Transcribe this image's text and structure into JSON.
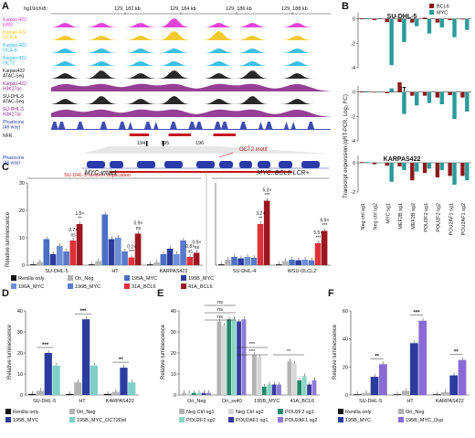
{
  "panel_letters": [
    "A",
    "B",
    "C",
    "D",
    "E",
    "F"
  ],
  "colors": {
    "magenta": "#e12fd6",
    "gold": "#f2c318",
    "cyan": "#23b7e5",
    "black": "#111111",
    "purple": "#8b2a8c",
    "navy": "#2a3aa8",
    "red": "#c4161c",
    "teal": "#2a9a9a",
    "grey": "#b3b3b3",
    "lightgrey": "#d9d9d9",
    "darkred": "#8c1a1a",
    "blue": "#3f5fbf"
  },
  "panelA": {
    "genome": "hg19/chr8:",
    "coords": [
      "129, 182 kb",
      "129, 184 kb",
      "129, 186 kb",
      "129, 188 kb"
    ],
    "tracks": [
      {
        "label": "Karpas-422\np300",
        "color": "#e12fd6"
      },
      {
        "label": "Karpas-422\nOCA-B",
        "color": "#f2c318"
      },
      {
        "label": "Karpas-422\nOCA-B",
        "color": "#23b7e5"
      },
      {
        "label": "Karpas-422\nOCT2",
        "color": "#23b7e5"
      },
      {
        "label": "Karpas422\nATAC-Seq",
        "color": "#111111"
      },
      {
        "label": "Karpas-422\nH3K27ac",
        "color": "#8b2a8c"
      },
      {
        "label": "SU-DHL-5\nATAC-Seq",
        "color": "#111111"
      },
      {
        "label": "SU-DHL-5\nH3K27ac",
        "color": "#8b2a8c"
      },
      {
        "label": "Phastcons\n(46 way)",
        "color": "#2a3aa8"
      }
    ],
    "nfr": "NFR",
    "labels194": "194",
    "labels195": "195",
    "labels196": "196",
    "a": "A",
    "b": "B",
    "oct2": "OCT2 motif",
    "phastcons_zoom": "Phastcons\n(46 way)",
    "dup": "SU-DHL-5 tandem duplication"
  },
  "panelB": {
    "ylabel": "Transcript expression (qRT-PCR, Log₂ FC)",
    "legend": [
      {
        "name": "BCL6",
        "color": "#8c1a1a"
      },
      {
        "name": "MYC",
        "color": "#2a9a9a"
      }
    ],
    "categories": [
      "Neg_ctrl_sg1",
      "Neg_ctrl_sg2",
      "MYC_sg1",
      "MEF2B_sg1",
      "MEF2B_sg2",
      "POU2F2_sg1",
      "POU2F2_sg2",
      "POU2AF1_sg1",
      "POU2AF1_sg2"
    ],
    "cells": [
      {
        "name": "SU-DHL-5",
        "ylim": [
          -4,
          0.5
        ],
        "ticks": [
          "0",
          "-2",
          "-4"
        ],
        "bcl6": [
          0.05,
          -0.1,
          -0.25,
          -0.25,
          -0.3,
          0.1,
          -0.3,
          -0.1,
          -0.05
        ],
        "myc": [
          0.05,
          0.05,
          -3.8,
          -1.9,
          -0.6,
          -1.2,
          -0.7,
          -1.5,
          -0.9
        ]
      },
      {
        "name": "HT",
        "ylim": [
          -4,
          0.5
        ],
        "ticks": [
          "0",
          "-2",
          "-4"
        ],
        "bcl6": [
          0.05,
          0.0,
          -0.1,
          0.8,
          -0.3,
          -0.3,
          -0.45,
          -0.25,
          -0.45
        ],
        "myc": [
          0.05,
          0.0,
          0.3,
          -1.8,
          -1.1,
          -0.9,
          -1.0,
          -2.2,
          -1.6
        ]
      },
      {
        "name": "KARPAS422",
        "ylim": [
          -2,
          0.5
        ],
        "ticks": [
          "0",
          "-2"
        ],
        "bcl6": [
          0.05,
          -0.1,
          -0.2,
          -0.25,
          -1.2,
          -0.7,
          -1.0,
          -0.9,
          -0.9
        ],
        "myc": [
          0.05,
          0.0,
          -1.3,
          -0.5,
          -0.6,
          -0.4,
          -0.5,
          -1.5,
          -1.2
        ]
      }
    ]
  },
  "panelC": {
    "ylabel": "Relative luminescence",
    "header_left": "MYC-intact",
    "header_right": "MYC::BCL6-LCR+",
    "ylim": [
      0,
      30
    ],
    "ticks": [
      "0",
      "10",
      "20",
      "30"
    ],
    "cells": [
      "SU-DHL-5",
      "HT",
      "KARPAS422",
      "SU-DHL-4",
      "WSU-DLCL2"
    ],
    "series": [
      {
        "name": "Renilla only",
        "color": "#111111"
      },
      {
        "name": "Ori_Neg",
        "color": "#b3b3b3"
      },
      {
        "name": "195A_MYC",
        "color": "#4a6fc4"
      },
      {
        "name": "195B_MYC",
        "color": "#2b3c9e"
      },
      {
        "name": "196A_MYC",
        "color": "#6d8fd6"
      },
      {
        "name": "196B_MYC",
        "color": "#5a7ac8"
      },
      {
        "name": "31A_BCL6",
        "color": "#e0303a"
      },
      {
        "name": "41A_BCL6",
        "color": "#9c1620"
      }
    ],
    "values": {
      "SU-DHL-5": [
        0.3,
        1.2,
        9.5,
        4,
        7,
        5,
        9,
        15
      ],
      "HT": [
        0.3,
        1.5,
        18.5,
        9.5,
        10,
        5,
        2.8,
        11.5
      ],
      "KARPAS422": [
        0.3,
        1,
        4,
        6,
        4,
        9,
        3,
        4.5
      ],
      "SU-DHL-4": [
        0.3,
        2,
        3,
        2.5,
        3,
        2.7,
        15,
        23.5
      ],
      "WSU-DLCL2": [
        0.3,
        1.5,
        2,
        1.8,
        2,
        1.8,
        8,
        12.5
      ]
    },
    "annotations": [
      {
        "cell": "SU-DHL-5",
        "series": 6,
        "text": "0.7×\nns"
      },
      {
        "cell": "SU-DHL-5",
        "series": 7,
        "text": "1.5×\n**"
      },
      {
        "cell": "HT",
        "series": 6,
        "text": "0.2×\n***"
      },
      {
        "cell": "HT",
        "series": 7,
        "text": "0.9×\nns"
      },
      {
        "cell": "KARPAS422",
        "series": 6,
        "text": "0.8×\nns"
      },
      {
        "cell": "KARPAS422",
        "series": 7,
        "text": "0.9×\nns"
      },
      {
        "cell": "SU-DHL-4",
        "series": 6,
        "text": "3.2×\n**"
      },
      {
        "cell": "SU-DHL-4",
        "series": 7,
        "text": "5.3×\n***"
      },
      {
        "cell": "WSU-DLCL2",
        "series": 6,
        "text": "5.5×\n***"
      },
      {
        "cell": "WSU-DLCL2",
        "series": 7,
        "text": "6.9×\n***"
      }
    ]
  },
  "panelD": {
    "ylabel": "Relative luminescence",
    "ylim": [
      0,
      40
    ],
    "ticks": [
      "0",
      "10",
      "20",
      "30",
      "40"
    ],
    "cells": [
      "SU-DHL-5",
      "HT",
      "KARPAS422"
    ],
    "series": [
      {
        "name": "Renilla only",
        "color": "#111111"
      },
      {
        "name": "Ori_Neg",
        "color": "#b3b3b3"
      },
      {
        "name": "195B_MYC",
        "color": "#2b3c9e"
      },
      {
        "name": "195B_MYC_OCT2Del",
        "color": "#7fd0c8"
      }
    ],
    "values": {
      "SU-DHL-5": [
        0.5,
        2,
        20,
        14
      ],
      "HT": [
        0.5,
        6,
        36,
        14
      ],
      "KARPAS422": [
        0.5,
        1.5,
        13,
        6
      ]
    },
    "sig": [
      "***",
      "***",
      "**"
    ]
  },
  "panelE": {
    "ylabel": "Relative luminescence",
    "ylim": [
      0,
      40
    ],
    "ticks": [
      "0",
      "10",
      "20",
      "30",
      "40"
    ],
    "groups": [
      "Ori_Neg",
      "Ori_sv40",
      "195B_MYC",
      "41A_BCL6"
    ],
    "series": [
      {
        "name": "Neg Ctrl sg1",
        "color": "#b3b3b3"
      },
      {
        "name": "Neg Ctrl sg2",
        "color": "#d6d6d6"
      },
      {
        "name": "POU2F2 sg1",
        "color": "#1e8a6a"
      },
      {
        "name": "POU2F2 sg2",
        "color": "#8ad6c4"
      },
      {
        "name": "POU2AF1 sg1",
        "color": "#3a3a9e"
      },
      {
        "name": "POU2AF1 sg2",
        "color": "#8c7ad6"
      }
    ],
    "values": {
      "Ori_Neg": [
        1,
        1,
        1,
        1,
        1,
        1
      ],
      "Ori_sv40": [
        35,
        33,
        36,
        36,
        35,
        36
      ],
      "195B_MYC": [
        19,
        18,
        4,
        5,
        5,
        5
      ],
      "41A_BCL6": [
        16,
        15,
        7,
        9,
        5,
        7
      ]
    },
    "sig": [
      "ns",
      "ns",
      "ns",
      "***",
      "***",
      "**"
    ]
  },
  "panelF": {
    "ylabel": "Relative luminescence",
    "ylim": [
      0,
      60
    ],
    "ticks": [
      "0",
      "20",
      "40",
      "60"
    ],
    "cells": [
      "SU-DHL-5",
      "HT",
      "KARPAS422"
    ],
    "series": [
      {
        "name": "Renilla only",
        "color": "#111111"
      },
      {
        "name": "Ori_Neg",
        "color": "#b3b3b3"
      },
      {
        "name": "195B_MYC",
        "color": "#2b3c9e"
      },
      {
        "name": "195B_MYC_Dup",
        "color": "#8a6ad6"
      }
    ],
    "values": {
      "SU-DHL-5": [
        0.5,
        1.5,
        13,
        22
      ],
      "HT": [
        0.5,
        3,
        37,
        53
      ],
      "KARPAS422": [
        0.5,
        2,
        14,
        25
      ]
    },
    "sig": [
      "**",
      "***",
      "**"
    ]
  }
}
